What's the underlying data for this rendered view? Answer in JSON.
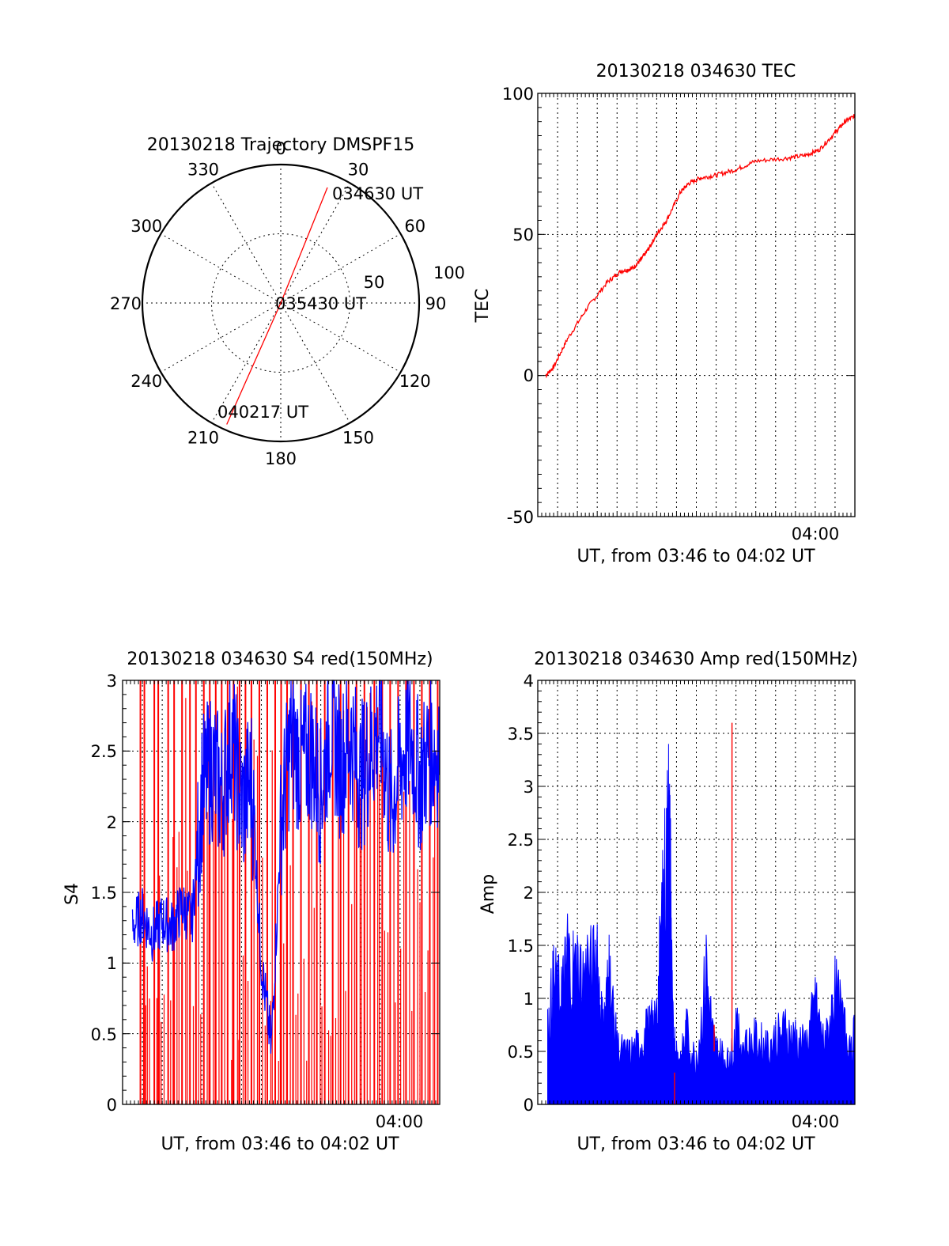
{
  "chart_data": [
    {
      "type": "polar",
      "title": "20130218 Trajectory DMSPF15",
      "angle_labels": [
        "0",
        "30",
        "60",
        "90",
        "120",
        "150",
        "180",
        "210",
        "240",
        "270",
        "300",
        "330"
      ],
      "radial_labels": [
        "50",
        "100"
      ],
      "annotations": {
        "start": "034630 UT",
        "mid": "035430 UT",
        "end": "040217 UT"
      },
      "trajectory": {
        "color": "#ff0000",
        "points": [
          {
            "azimuth": 22,
            "radius": 90
          },
          {
            "azimuth": 0,
            "radius": 0
          },
          {
            "azimuth": 204,
            "radius": 96
          }
        ]
      }
    },
    {
      "type": "line",
      "title": "20130218 034630 TEC",
      "xlabel": "UT, from 03:46 to 04:02 UT",
      "ylabel": "TEC",
      "x_tick_labels": [
        "04:00"
      ],
      "y_tick_labels": [
        "100",
        "50",
        "0",
        "-50"
      ],
      "xlim": [
        0,
        16
      ],
      "ylim": [
        -50,
        100
      ],
      "grid": true,
      "series": [
        {
          "color": "#ff0000",
          "x": [
            0.4,
            0.8,
            1.5,
            2.5,
            3.5,
            4.2,
            4.8,
            5.2,
            5.6,
            6.0,
            6.5,
            7.2,
            7.6,
            8.2,
            9.0,
            10.0,
            11.0,
            12.5,
            13.5,
            14.2,
            15.0,
            15.5,
            16.0
          ],
          "y": [
            0,
            3,
            13,
            24,
            33,
            37,
            38,
            41,
            45,
            50,
            55,
            65,
            68,
            70,
            71,
            73,
            76,
            77,
            78,
            80,
            86,
            90,
            92
          ]
        }
      ]
    },
    {
      "type": "line",
      "title": "20130218 034630 S4 red(150MHz)",
      "xlabel": "UT, from 03:46 to 04:02 UT",
      "ylabel": "S4",
      "x_tick_labels": [
        "04:00"
      ],
      "y_tick_labels": [
        "3",
        "2.5",
        "2",
        "1.5",
        "1",
        "0.5",
        "0"
      ],
      "xlim": [
        0,
        16
      ],
      "ylim": [
        0,
        3
      ],
      "grid": true,
      "series": [
        {
          "color": "#0000ff",
          "x": [
            0.5,
            1.0,
            1.5,
            2.0,
            2.5,
            3.0,
            3.5,
            4.0,
            4.5,
            5.0,
            5.5,
            6.0,
            6.5,
            7.0,
            7.5,
            8.0,
            8.5,
            9.0,
            9.5,
            10.0,
            10.5,
            11.0,
            11.5,
            12.0,
            12.5,
            13.0,
            13.5,
            14.0,
            14.5,
            15.0,
            15.5,
            16.0
          ],
          "y": [
            1.25,
            1.35,
            1.2,
            1.3,
            1.25,
            1.4,
            1.3,
            2.2,
            2.4,
            2.2,
            2.6,
            2.1,
            2.3,
            1.0,
            0.4,
            2.0,
            2.6,
            2.4,
            2.5,
            2.2,
            2.7,
            2.4,
            2.6,
            2.3,
            2.5,
            2.7,
            2.1,
            2.4,
            2.6,
            2.3,
            2.5,
            2.5
          ]
        },
        {
          "color": "#ff0000",
          "style": "dropouts",
          "x": [
            0.9,
            1.1,
            1.6,
            1.8,
            2.3,
            2.6,
            3.0,
            3.4,
            3.7,
            4.1,
            4.4,
            4.7,
            5.0,
            5.3,
            5.6,
            5.9,
            6.2,
            6.5,
            6.9,
            7.3,
            7.7,
            8.0,
            8.3,
            8.6,
            9.0,
            9.4,
            9.8,
            10.2,
            10.6,
            11.0,
            11.4,
            11.8,
            12.2,
            12.7,
            13.1,
            13.5,
            13.9,
            14.3,
            14.7,
            15.1,
            15.5,
            15.9
          ],
          "y": [
            3,
            3,
            3,
            3,
            3,
            3,
            3,
            3,
            3,
            3,
            3,
            3,
            3,
            3,
            3,
            3,
            3,
            3,
            3,
            3,
            3,
            3,
            3,
            3,
            3,
            3,
            3,
            3,
            3,
            3,
            3,
            3,
            3,
            3,
            3,
            3,
            3,
            3,
            3,
            3,
            3,
            3
          ]
        }
      ]
    },
    {
      "type": "line",
      "title": "20130218 034630 Amp red(150MHz)",
      "xlabel": "UT, from 03:46 to 04:02 UT",
      "ylabel": "Amp",
      "x_tick_labels": [
        "04:00"
      ],
      "y_tick_labels": [
        "4",
        "3.5",
        "3",
        "2.5",
        "2",
        "1.5",
        "1",
        "0.5",
        "0"
      ],
      "xlim": [
        0,
        16
      ],
      "ylim": [
        0,
        4
      ],
      "grid": true,
      "series": [
        {
          "color": "#0000ff",
          "style": "filled",
          "x": [
            0.5,
            0.8,
            1.2,
            1.5,
            2.0,
            2.5,
            3.0,
            3.3,
            3.6,
            4.0,
            4.5,
            5.0,
            5.5,
            6.0,
            6.3,
            6.6,
            6.7,
            6.8,
            7.0,
            7.2,
            7.5,
            8.0,
            8.5,
            8.9,
            9.3,
            9.7,
            10.0,
            10.5,
            11.0,
            11.5,
            12.0,
            12.5,
            13.0,
            13.5,
            14.0,
            14.5,
            15.0,
            15.5,
            16.0
          ],
          "y": [
            0.9,
            1.5,
            1.3,
            1.8,
            1.6,
            1.6,
            1.7,
            0.9,
            1.6,
            0.7,
            0.6,
            0.7,
            0.9,
            1.0,
            2.4,
            3.4,
            2.7,
            1.0,
            0.6,
            0.5,
            0.9,
            0.5,
            1.6,
            0.7,
            0.6,
            0.5,
            0.9,
            0.7,
            0.8,
            0.7,
            0.8,
            0.9,
            0.8,
            0.7,
            1.2,
            0.7,
            1.4,
            0.9,
            0.8
          ]
        },
        {
          "color": "#ff0000",
          "style": "spikes",
          "x": [
            6.9,
            8.9,
            9.8
          ],
          "y": [
            0.3,
            0.75,
            3.6
          ]
        }
      ]
    }
  ]
}
